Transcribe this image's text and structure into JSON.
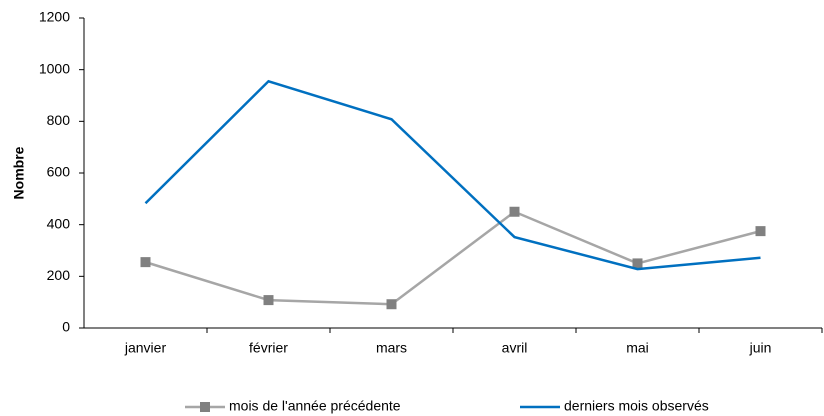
{
  "chart_data": {
    "type": "line",
    "y_label": "Nombre",
    "categories": [
      "janvier",
      "février",
      "mars",
      "avril",
      "mai",
      "juin"
    ],
    "series": [
      {
        "name": "mois de l'année précédente",
        "color": "#a6a6a6",
        "marker": "square",
        "values": [
          255,
          108,
          92,
          450,
          250,
          375
        ]
      },
      {
        "name": "derniers mois observés",
        "color": "#0070c0",
        "values": [
          483,
          955,
          808,
          352,
          228,
          272
        ]
      }
    ],
    "ylim": [
      0,
      1200
    ],
    "yticks": [
      0,
      200,
      400,
      600,
      800,
      1000,
      1200
    ],
    "grid": false,
    "legend": "bottom"
  }
}
